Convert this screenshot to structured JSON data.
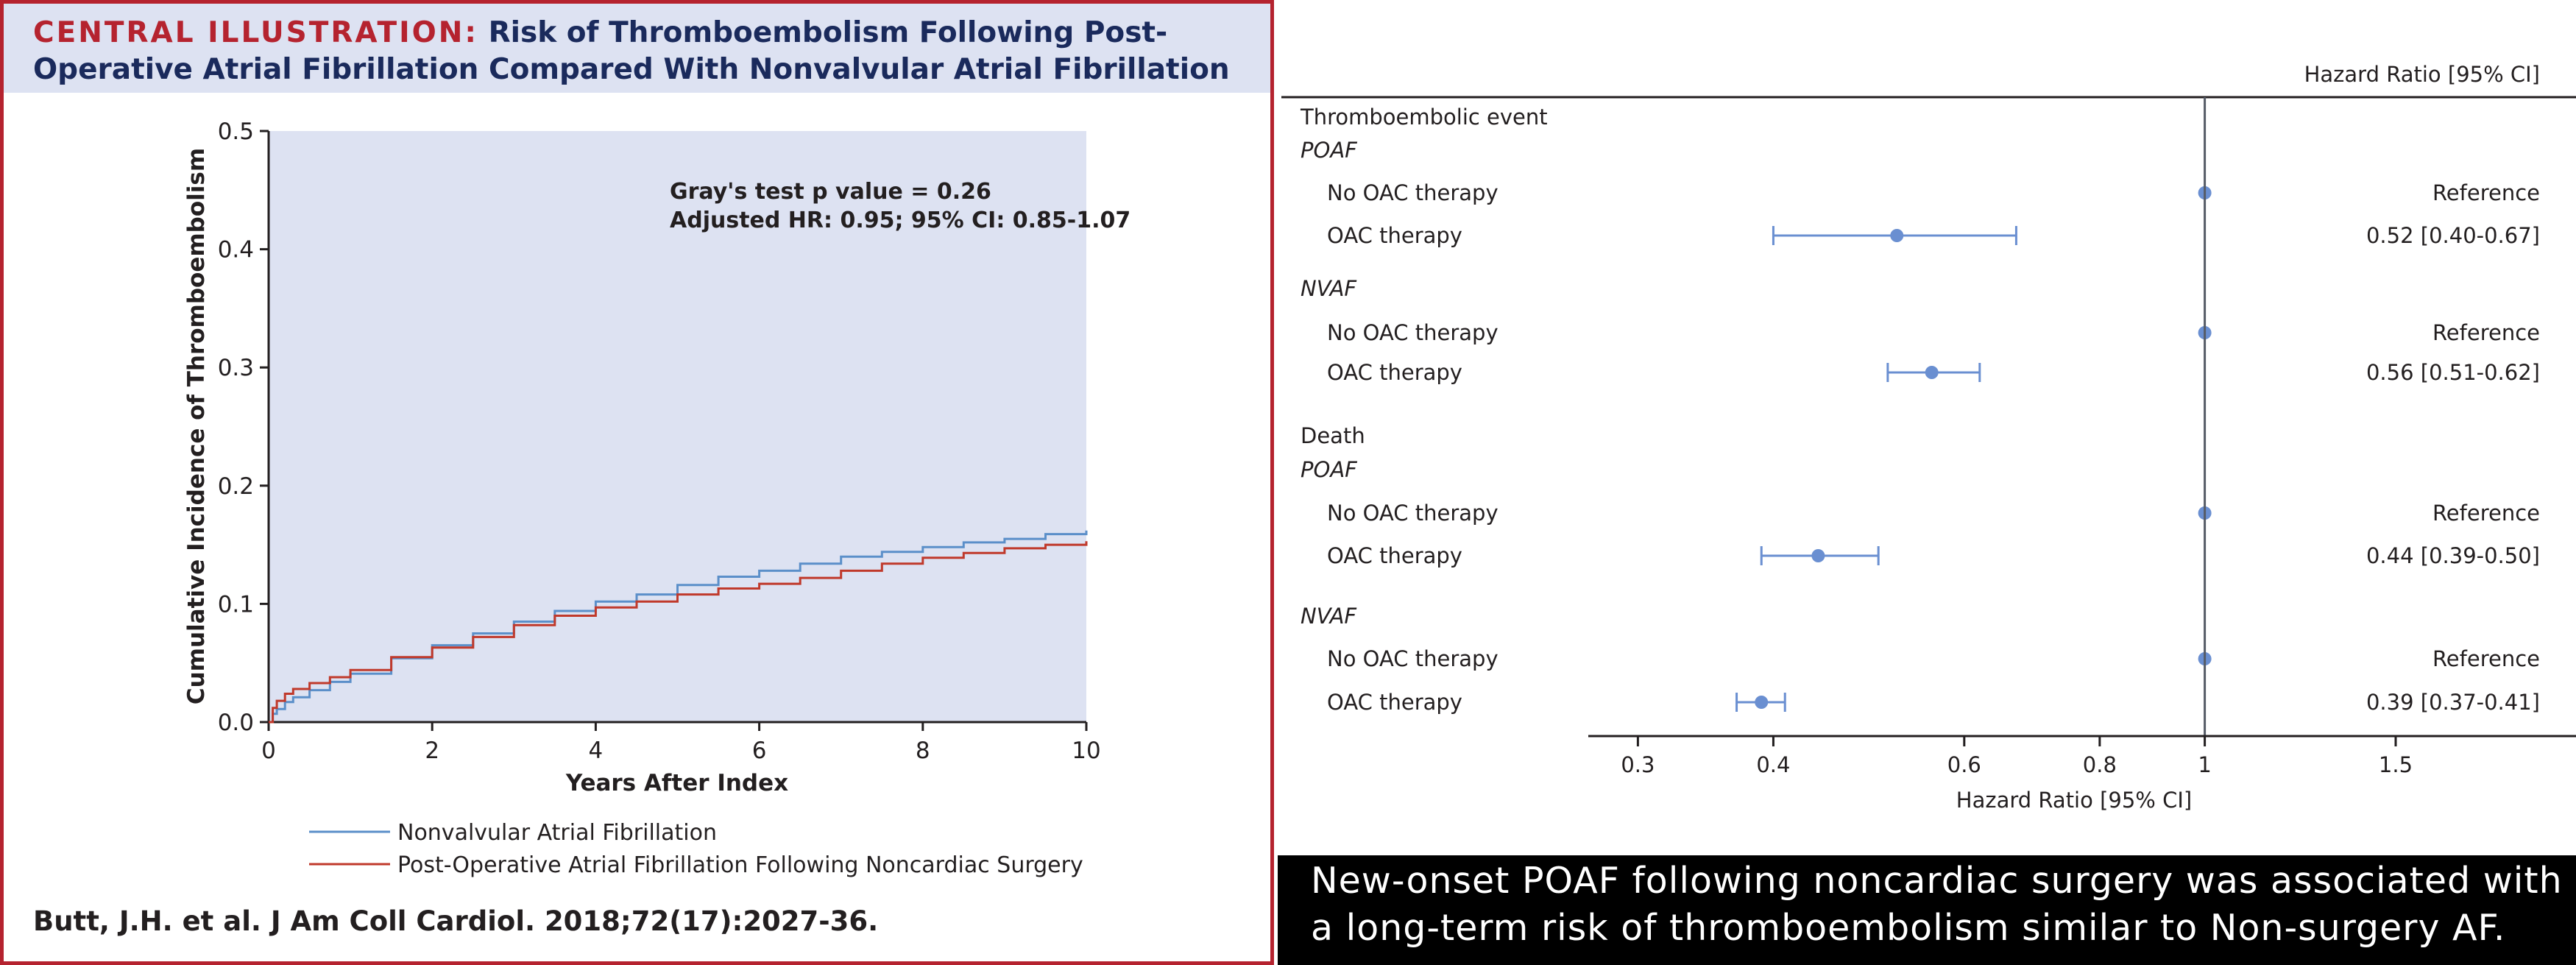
{
  "header": {
    "label": "CENTRAL ILLUSTRATION:",
    "title_line1": "Risk of Thromboembolism Following Post-",
    "title_line2": "Operative Atrial Fibrillation Compared With Nonvalvular Atrial Fibrillation"
  },
  "citation": "Butt, J.H. et al. J Am Coll Cardiol. 2018;72(17):2027-36.",
  "message": {
    "line1": "New-onset POAF following noncardiac surgery was associated with",
    "line2": "a long-term risk of thromboembolism similar to Non-surgery AF."
  },
  "chart_data": [
    {
      "type": "line",
      "xlabel": "Years After Index",
      "ylabel": "Cumulative Incidence of Thromboembolism",
      "xlim": [
        0,
        10
      ],
      "ylim": [
        0,
        0.5
      ],
      "xticks": [
        "0",
        "2",
        "4",
        "6",
        "8",
        "10"
      ],
      "yticks": [
        "0.0",
        "0.1",
        "0.2",
        "0.3",
        "0.4",
        "0.5"
      ],
      "annotation": {
        "line1": "Gray's test p value = 0.26",
        "line2": "Adjusted HR: 0.95; 95% CI: 0.85-1.07"
      },
      "legend_position": "bottom",
      "series": [
        {
          "name": "Nonvalvular Atrial Fibrillation",
          "color": "#5b8fc9",
          "x": [
            0,
            0.05,
            0.1,
            0.2,
            0.3,
            0.5,
            0.75,
            1,
            1.5,
            2,
            2.5,
            3,
            3.5,
            4,
            4.5,
            5,
            5.5,
            6,
            6.5,
            7,
            7.5,
            8,
            8.5,
            9,
            9.5,
            10
          ],
          "y": [
            0,
            0.007,
            0.011,
            0.017,
            0.021,
            0.027,
            0.034,
            0.041,
            0.054,
            0.065,
            0.075,
            0.085,
            0.094,
            0.102,
            0.108,
            0.116,
            0.123,
            0.128,
            0.134,
            0.14,
            0.144,
            0.148,
            0.152,
            0.155,
            0.159,
            0.162
          ]
        },
        {
          "name": "Post-Operative Atrial Fibrillation Following Noncardiac Surgery",
          "color": "#c0392b",
          "x": [
            0,
            0.05,
            0.1,
            0.2,
            0.3,
            0.5,
            0.75,
            1,
            1.5,
            2,
            2.5,
            3,
            3.5,
            4,
            4.5,
            5,
            5.5,
            6,
            6.5,
            7,
            7.5,
            8,
            8.5,
            9,
            9.5,
            10
          ],
          "y": [
            0,
            0.012,
            0.018,
            0.024,
            0.028,
            0.033,
            0.038,
            0.044,
            0.055,
            0.063,
            0.072,
            0.082,
            0.09,
            0.097,
            0.102,
            0.108,
            0.113,
            0.117,
            0.122,
            0.128,
            0.134,
            0.139,
            0.143,
            0.147,
            0.15,
            0.153
          ]
        }
      ]
    },
    {
      "type": "forest",
      "column_header": "Hazard Ratio [95% CI]",
      "xlabel": "Hazard Ratio [95% CI]",
      "scale": "log",
      "xlim": [
        0.27,
        2.2
      ],
      "xticks": [
        0.3,
        0.4,
        0.6,
        0.8,
        1,
        1.5
      ],
      "xtick_labels": [
        "0.3",
        "0.4",
        "0.6",
        "0.8",
        "1",
        "1.5"
      ],
      "reference_line": 1,
      "marker_color": "#6a8fd1",
      "rows": [
        {
          "kind": "section",
          "label": "Thromboembolic event"
        },
        {
          "kind": "group",
          "label": "POAF"
        },
        {
          "kind": "item",
          "label": "No OAC therapy",
          "hr": 1,
          "text": "Reference"
        },
        {
          "kind": "item",
          "label": "OAC therapy",
          "hr": 0.52,
          "lo": 0.4,
          "hi": 0.67,
          "text": "0.52 [0.40-0.67]"
        },
        {
          "kind": "group",
          "label": "NVAF"
        },
        {
          "kind": "item",
          "label": "No OAC therapy",
          "hr": 1,
          "text": "Reference"
        },
        {
          "kind": "item",
          "label": "OAC therapy",
          "hr": 0.56,
          "lo": 0.51,
          "hi": 0.62,
          "text": "0.56 [0.51-0.62]"
        },
        {
          "kind": "section",
          "label": "Death"
        },
        {
          "kind": "group",
          "label": "POAF"
        },
        {
          "kind": "item",
          "label": "No OAC therapy",
          "hr": 1,
          "text": "Reference"
        },
        {
          "kind": "item",
          "label": "OAC therapy",
          "hr": 0.44,
          "lo": 0.39,
          "hi": 0.5,
          "text": "0.44 [0.39-0.50]"
        },
        {
          "kind": "group",
          "label": "NVAF"
        },
        {
          "kind": "item",
          "label": "No OAC therapy",
          "hr": 1,
          "text": "Reference"
        },
        {
          "kind": "item",
          "label": "OAC therapy",
          "hr": 0.39,
          "lo": 0.37,
          "hi": 0.41,
          "text": "0.39 [0.37-0.41]"
        }
      ]
    }
  ]
}
